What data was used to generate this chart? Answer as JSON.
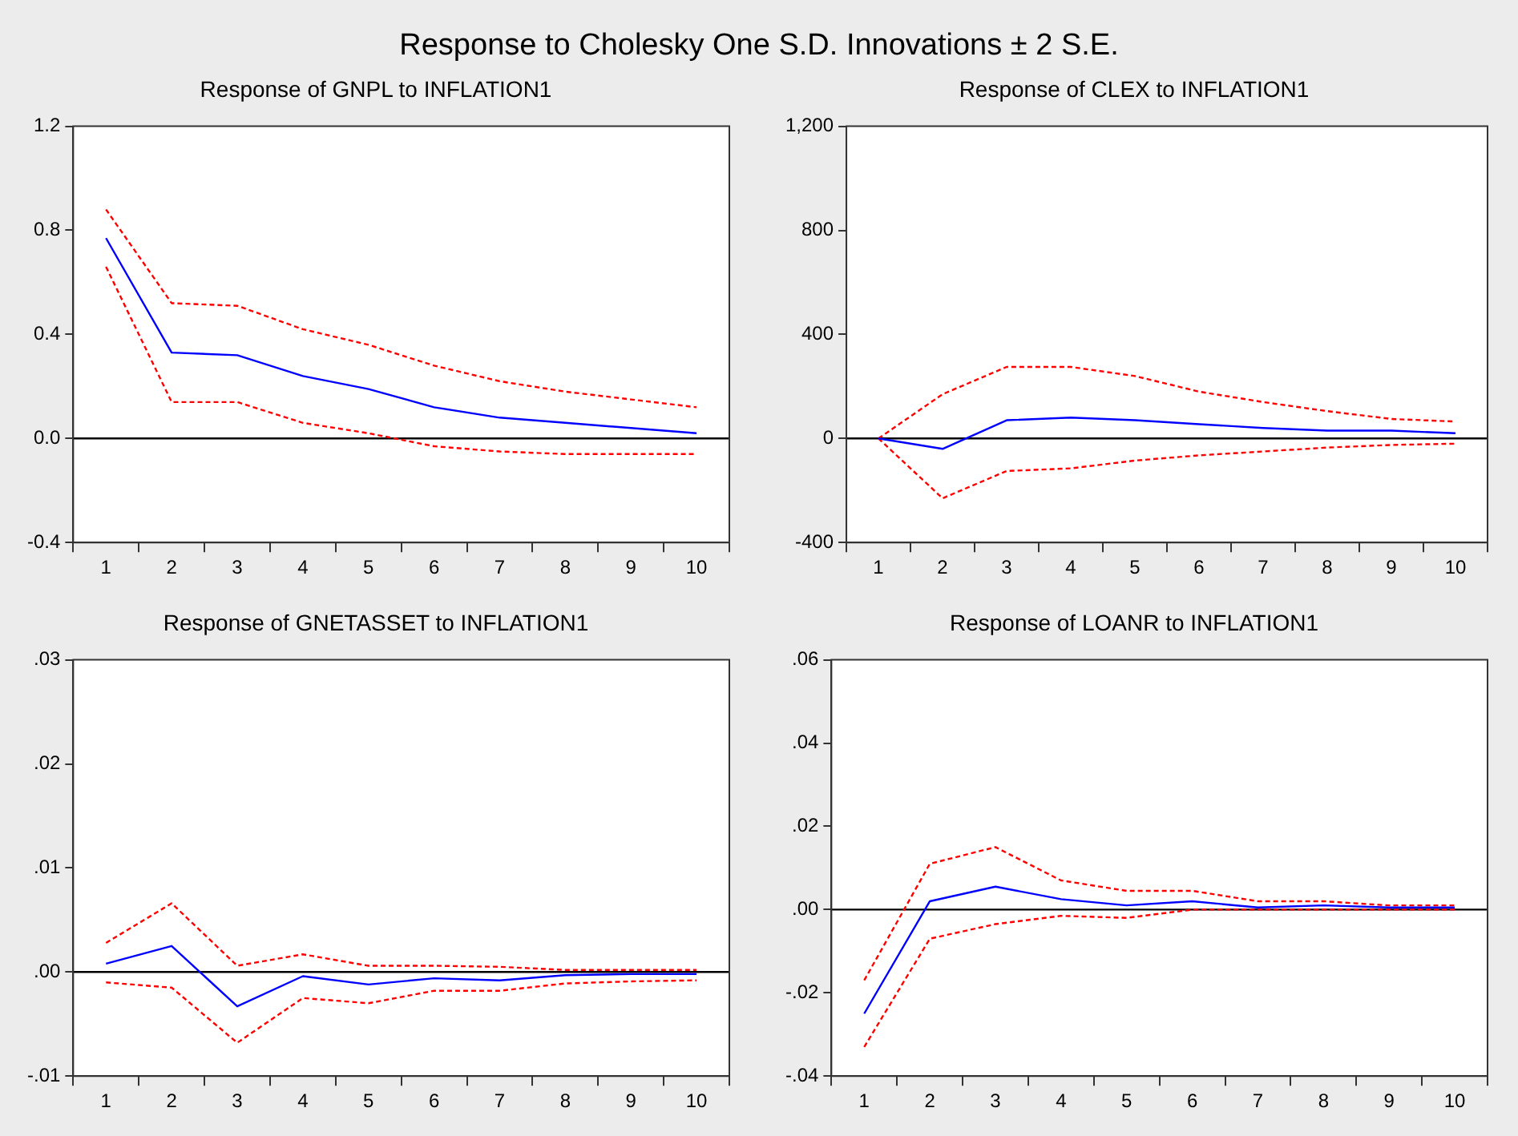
{
  "chart_data": [
    {
      "type": "line",
      "title": "Response of GNPL to INFLATION1",
      "annotations": [
        "Response to Cholesky One S.D. Innovations ± 2 S.E."
      ],
      "categories": [
        "1",
        "2",
        "3",
        "4",
        "5",
        "6",
        "7",
        "8",
        "9",
        "10"
      ],
      "marker": "none",
      "legend": false,
      "grid": false,
      "ylim": [
        -0.4,
        1.2
      ],
      "yticks": [
        {
          "value": -0.4,
          "label": "-0.4"
        },
        {
          "value": 0,
          "label": "0.0"
        },
        0.4,
        0.8,
        1.2
      ],
      "ref_lines": [
        {
          "axis": "y",
          "value": 0,
          "color": "#000000"
        }
      ],
      "series": [
        {
          "color": "#0000ff",
          "line_style": "solid",
          "values": [
            0.77,
            0.33,
            0.32,
            0.24,
            0.19,
            0.12,
            0.08,
            0.06,
            0.04,
            0.02
          ]
        },
        {
          "color": "#ff0000",
          "line_style": "dashed",
          "values": [
            0.88,
            0.52,
            0.51,
            0.42,
            0.36,
            0.28,
            0.22,
            0.18,
            0.15,
            0.12
          ]
        },
        {
          "color": "#ff0000",
          "line_style": "dashed",
          "values": [
            0.66,
            0.14,
            0.14,
            0.06,
            0.02,
            -0.03,
            -0.05,
            -0.06,
            -0.06,
            -0.06
          ]
        }
      ]
    },
    {
      "type": "line",
      "title": "Response of CLEX to INFLATION1",
      "categories": [
        "1",
        "2",
        "3",
        "4",
        "5",
        "6",
        "7",
        "8",
        "9",
        "10"
      ],
      "marker": "none",
      "legend": false,
      "grid": false,
      "ylim": [
        -400,
        1200
      ],
      "yticks": [
        -400,
        0,
        400,
        800,
        {
          "value": 1200,
          "label": "1,200"
        }
      ],
      "ref_lines": [
        {
          "axis": "y",
          "value": 0,
          "color": "#000000"
        }
      ],
      "series": [
        {
          "color": "#0000ff",
          "line_style": "solid",
          "values": [
            0,
            -40,
            70,
            80,
            70,
            55,
            40,
            30,
            30,
            20
          ]
        },
        {
          "color": "#ff0000",
          "line_style": "dashed",
          "values": [
            0,
            170,
            275,
            275,
            240,
            180,
            140,
            105,
            75,
            65
          ]
        },
        {
          "color": "#ff0000",
          "line_style": "dashed",
          "values": [
            0,
            -230,
            -125,
            -115,
            -85,
            -65,
            -50,
            -35,
            -25,
            -20
          ]
        }
      ]
    },
    {
      "type": "line",
      "title": "Response of GNETASSET to INFLATION1",
      "categories": [
        "1",
        "2",
        "3",
        "4",
        "5",
        "6",
        "7",
        "8",
        "9",
        "10"
      ],
      "marker": "none",
      "legend": false,
      "grid": false,
      "ylim": [
        -0.01,
        0.03
      ],
      "yticks": [
        {
          "value": -0.01,
          "label": "-.01"
        },
        {
          "value": 0,
          "label": ".00"
        },
        {
          "value": 0.01,
          "label": ".01"
        },
        {
          "value": 0.02,
          "label": ".02"
        },
        {
          "value": 0.03,
          "label": ".03"
        }
      ],
      "ref_lines": [
        {
          "axis": "y",
          "value": 0,
          "color": "#000000"
        }
      ],
      "series": [
        {
          "color": "#0000ff",
          "line_style": "solid",
          "values": [
            0.0008,
            0.0025,
            -0.0033,
            -0.0004,
            -0.0012,
            -0.0006,
            -0.0008,
            -0.0003,
            -0.0002,
            -0.0002
          ]
        },
        {
          "color": "#ff0000",
          "line_style": "dashed",
          "values": [
            0.0028,
            0.0066,
            0.0006,
            0.0017,
            0.0006,
            0.0006,
            0.0005,
            0.0002,
            0.0002,
            0.0002
          ]
        },
        {
          "color": "#ff0000",
          "line_style": "dashed",
          "values": [
            -0.001,
            -0.0015,
            -0.0068,
            -0.0025,
            -0.003,
            -0.0018,
            -0.0018,
            -0.0011,
            -0.0009,
            -0.0008
          ]
        }
      ]
    },
    {
      "type": "line",
      "title": "Response of LOANR to INFLATION1",
      "categories": [
        "1",
        "2",
        "3",
        "4",
        "5",
        "6",
        "7",
        "8",
        "9",
        "10"
      ],
      "marker": "none",
      "legend": false,
      "grid": false,
      "ylim": [
        -0.04,
        0.06
      ],
      "yticks": [
        {
          "value": -0.04,
          "label": "-.04"
        },
        {
          "value": -0.02,
          "label": "-.02"
        },
        {
          "value": 0,
          "label": ".00"
        },
        {
          "value": 0.02,
          "label": ".02"
        },
        {
          "value": 0.04,
          "label": ".04"
        },
        {
          "value": 0.06,
          "label": ".06"
        }
      ],
      "ref_lines": [
        {
          "axis": "y",
          "value": 0,
          "color": "#000000"
        }
      ],
      "series": [
        {
          "color": "#0000ff",
          "line_style": "solid",
          "values": [
            -0.025,
            0.002,
            0.0055,
            0.0025,
            0.001,
            0.002,
            0.0005,
            0.001,
            0.0005,
            0.0005
          ]
        },
        {
          "color": "#ff0000",
          "line_style": "dashed",
          "values": [
            -0.017,
            0.011,
            0.015,
            0.007,
            0.0045,
            0.0045,
            0.002,
            0.002,
            0.001,
            0.001
          ]
        },
        {
          "color": "#ff0000",
          "line_style": "dashed",
          "values": [
            -0.033,
            -0.007,
            -0.0035,
            -0.0015,
            -0.002,
            0,
            0,
            0,
            0,
            0
          ]
        }
      ]
    }
  ]
}
